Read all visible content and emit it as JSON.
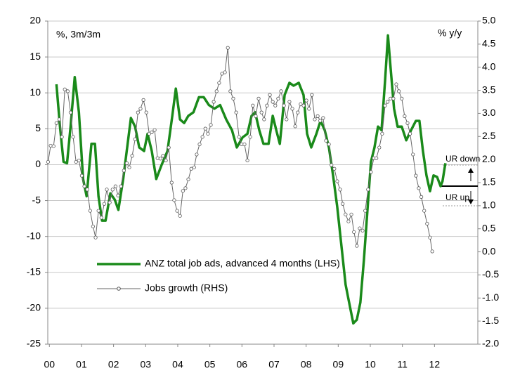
{
  "chart_data": {
    "type": "line",
    "annotations": [
      "%, 3m/3m",
      "% y/y",
      "UR down",
      "UR up"
    ],
    "xlim": [
      -0.05,
      13.35
    ],
    "xticks": [
      {
        "value": 0,
        "label": "00"
      },
      {
        "value": 1,
        "label": "01"
      },
      {
        "value": 2,
        "label": "02"
      },
      {
        "value": 3,
        "label": "03"
      },
      {
        "value": 4,
        "label": "04"
      },
      {
        "value": 5,
        "label": "05"
      },
      {
        "value": 6,
        "label": "06"
      },
      {
        "value": 7,
        "label": "07"
      },
      {
        "value": 8,
        "label": "08"
      },
      {
        "value": 9,
        "label": "09"
      },
      {
        "value": 10,
        "label": "10"
      },
      {
        "value": 11,
        "label": "11"
      },
      {
        "value": 12,
        "label": "12"
      }
    ],
    "ylim": [
      -25,
      20
    ],
    "yticks": [
      20,
      15,
      10,
      5,
      0,
      -5,
      -10,
      -15,
      -20,
      -25
    ],
    "y2lim": [
      -2,
      5
    ],
    "y2ticks": [
      {
        "value": 5,
        "label": "5.0"
      },
      4.5,
      {
        "value": 4,
        "label": "4.0"
      },
      3.5,
      {
        "value": 3,
        "label": "3.0"
      },
      2.5,
      {
        "value": 2,
        "label": "2.0"
      },
      1.5,
      {
        "value": 1,
        "label": "1.0"
      },
      0.5,
      {
        "value": 0,
        "label": "0.0"
      },
      -0.5,
      {
        "value": -1,
        "label": "-1.0"
      },
      -1.5,
      {
        "value": -2,
        "label": "-2.0"
      }
    ],
    "grid": true,
    "series": [
      {
        "name": "ANZ total job ads, advanced 4 months (LHS)",
        "color": "#1a8a1a",
        "axis": "y",
        "x": [
          0.22,
          0.33,
          0.44,
          0.55,
          0.66,
          0.79,
          0.92,
          1.05,
          1.16,
          1.31,
          1.42,
          1.53,
          1.64,
          1.75,
          1.9,
          2.04,
          2.15,
          2.3,
          2.41,
          2.54,
          2.67,
          2.8,
          2.95,
          3.06,
          3.19,
          3.33,
          3.5,
          3.68,
          3.83,
          3.94,
          4.07,
          4.2,
          4.33,
          4.49,
          4.66,
          4.81,
          4.97,
          5.14,
          5.32,
          5.51,
          5.69,
          5.84,
          6.02,
          6.17,
          6.3,
          6.41,
          6.54,
          6.67,
          6.83,
          6.96,
          7.07,
          7.18,
          7.33,
          7.48,
          7.61,
          7.77,
          7.92,
          8.03,
          8.16,
          8.32,
          8.45,
          8.58,
          8.71,
          8.84,
          8.97,
          9.1,
          9.23,
          9.34,
          9.47,
          9.58,
          9.69,
          9.8,
          9.91,
          10.02,
          10.13,
          10.24,
          10.35,
          10.46,
          10.55,
          10.63,
          10.74,
          10.85,
          10.98,
          11.12,
          11.27,
          11.42,
          11.53,
          11.64,
          11.75,
          11.86,
          11.97,
          12.08,
          12.19,
          12.25,
          12.34
        ],
        "values": [
          11.2,
          5.3,
          0.4,
          0.2,
          5.3,
          12.2,
          7.3,
          -2,
          -4.4,
          2.9,
          2.9,
          -4.4,
          -7.8,
          -7.8,
          -4,
          -4.9,
          -6.3,
          -2,
          1.9,
          6.5,
          5.3,
          2.4,
          1.9,
          4.3,
          1.9,
          -2,
          0,
          1.9,
          6.8,
          10.6,
          6.3,
          5.8,
          6.8,
          7.3,
          9.4,
          9.4,
          8.3,
          7.8,
          8.3,
          6.3,
          4.8,
          2.4,
          3.8,
          4.3,
          6.8,
          7.3,
          4.8,
          2.9,
          2.9,
          6.8,
          4.8,
          2.9,
          9.7,
          11.4,
          11,
          11.4,
          9.7,
          4.3,
          2.4,
          4.3,
          6.1,
          4.8,
          2.4,
          -1.5,
          -5.9,
          -11.3,
          -16.7,
          -19.2,
          -22.1,
          -21.6,
          -19.2,
          -13.3,
          -6.4,
          0.4,
          2.4,
          5.3,
          4.8,
          11.7,
          18,
          13.6,
          7.8,
          5.3,
          5.3,
          3.4,
          4.8,
          6.1,
          6.1,
          1.9,
          -1.5,
          -3.7,
          -1.5,
          -1.7,
          -3,
          -2.3,
          0.2
        ]
      },
      {
        "name": "Jobs growth (RHS)",
        "color": "#666666",
        "axis": "y2",
        "x": [
          -0.04,
          0.04,
          0.13,
          0.22,
          0.31,
          0.39,
          0.48,
          0.57,
          0.66,
          0.74,
          0.83,
          0.92,
          1.01,
          1.09,
          1.18,
          1.27,
          1.36,
          1.44,
          1.53,
          1.62,
          1.71,
          1.79,
          1.88,
          1.97,
          2.06,
          2.14,
          2.23,
          2.32,
          2.41,
          2.49,
          2.58,
          2.67,
          2.76,
          2.84,
          2.93,
          3.02,
          3.11,
          3.19,
          3.28,
          3.37,
          3.46,
          3.54,
          3.63,
          3.72,
          3.81,
          3.89,
          3.98,
          4.07,
          4.16,
          4.24,
          4.33,
          4.42,
          4.51,
          4.59,
          4.68,
          4.77,
          4.86,
          4.94,
          5.03,
          5.12,
          5.21,
          5.29,
          5.38,
          5.47,
          5.56,
          5.64,
          5.73,
          5.82,
          5.91,
          5.99,
          6.08,
          6.17,
          6.26,
          6.34,
          6.43,
          6.52,
          6.61,
          6.69,
          6.78,
          6.87,
          6.96,
          7.04,
          7.13,
          7.22,
          7.31,
          7.39,
          7.48,
          7.57,
          7.66,
          7.74,
          7.83,
          7.92,
          8.01,
          8.09,
          8.18,
          8.27,
          8.36,
          8.44,
          8.53,
          8.62,
          8.71,
          8.79,
          8.88,
          8.97,
          9.06,
          9.14,
          9.23,
          9.32,
          9.41,
          9.49,
          9.58,
          9.67,
          9.76,
          9.84,
          9.93,
          10.02,
          10.11,
          10.19,
          10.28,
          10.37,
          10.46,
          10.54,
          10.63,
          10.72,
          10.81,
          10.89,
          10.98,
          11.07,
          11.16,
          11.24,
          11.33,
          11.42,
          11.51,
          11.59,
          11.68,
          11.77,
          11.86,
          11.93
        ],
        "values": [
          1.95,
          2.3,
          2.29,
          2.79,
          2.87,
          2.49,
          3.52,
          3.48,
          3.02,
          2.49,
          1.95,
          1.98,
          1.65,
          1.42,
          1.35,
          0.89,
          0.55,
          0.31,
          0.89,
          0.74,
          1.04,
          1.35,
          1.07,
          1.35,
          1.42,
          1.22,
          1.42,
          1.76,
          1.92,
          1.83,
          2.08,
          2.44,
          3.02,
          3.1,
          3.29,
          3.02,
          2.56,
          2.59,
          2.64,
          2.03,
          2.02,
          2.08,
          1.98,
          2.26,
          1.5,
          1.12,
          0.89,
          0.78,
          1.32,
          1.38,
          1.57,
          1.8,
          1.83,
          2.11,
          2.33,
          2.49,
          2.67,
          2.56,
          2.75,
          3.25,
          3.48,
          3.66,
          3.86,
          3.89,
          4.42,
          3.48,
          3.32,
          3.02,
          2.49,
          2.33,
          2.33,
          1.98,
          2.49,
          3.17,
          2.94,
          3.32,
          3.02,
          2.87,
          3.17,
          3.4,
          3.25,
          3.17,
          3.32,
          3.48,
          3.17,
          2.87,
          3.25,
          3.1,
          2.72,
          3.02,
          3.2,
          3.17,
          3.28,
          3.1,
          3.4,
          2.87,
          2.94,
          2.84,
          2.9,
          2.41,
          2.33,
          1.88,
          1.8,
          1.53,
          1.35,
          1.04,
          0.81,
          0.66,
          0.81,
          0.43,
          0.13,
          0.51,
          0.46,
          0.89,
          1.35,
          1.73,
          2.03,
          2.03,
          2.26,
          2.56,
          3.17,
          3.25,
          3.32,
          3.32,
          3.63,
          3.48,
          3.32,
          2.94,
          2.79,
          2.56,
          2.11,
          1.65,
          1.38,
          1.19,
          0.89,
          0.61,
          0.31,
          0.01
        ]
      }
    ]
  }
}
